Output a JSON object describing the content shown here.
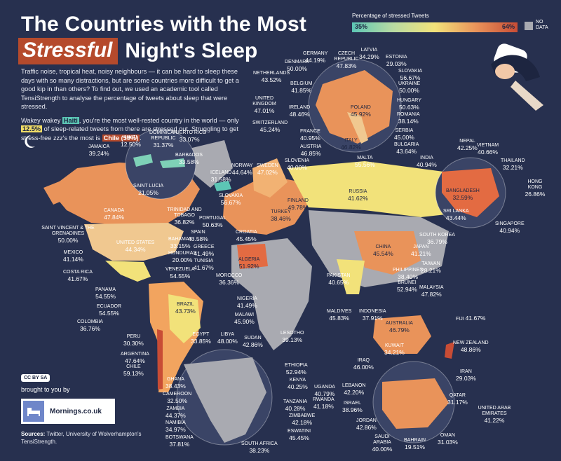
{
  "title": {
    "line1": "The Countries with the Most",
    "highlight": "Stressful",
    "rest": "Night's Sleep"
  },
  "intro": {
    "p1": "Traffic noise, tropical heat, noisy neighbours — it can be hard to sleep these days with so many distractions, but are some countries more difficult to get a good kip in than others? To find out, we used an academic tool called TensiStrength to analyse the percentage of tweets about sleep that were stressed.",
    "p2_a": "Wakey wakey ",
    "p2_haiti": "Haiti",
    "p2_b": ", you're the most well-rested country in the world — only ",
    "p2_pct": "12.5%",
    "p2_c": " of sleep-related tweets from there are stressed out. Struggling to get stress-free zzz's the most is ",
    "p2_chile": "Chile (59%)",
    "p2_d": "."
  },
  "legend": {
    "title": "Percentage of stressed Tweets",
    "min": "35%",
    "max": "64%",
    "nodata": "NO DATA"
  },
  "colors": {
    "bg": "#27304f",
    "low": "#5cc6b5",
    "mid": "#f2e27a",
    "high": "#c84c35",
    "nodata": "#a9aab1",
    "accent": "#b54a2c"
  },
  "labels": [
    {
      "id": "germany",
      "name": "GERMANY",
      "value": "44.19%"
    },
    {
      "id": "czech",
      "name": "CZECH REPUBLIC",
      "value": "47.83%"
    },
    {
      "id": "latvia",
      "name": "LATVIA",
      "value": "34.29%"
    },
    {
      "id": "estonia",
      "name": "ESTONIA",
      "value": "29.03%"
    },
    {
      "id": "denmark",
      "name": "DENMARK",
      "value": "50.00%"
    },
    {
      "id": "netherlands",
      "name": "NETHERLANDS",
      "value": "43.52%"
    },
    {
      "id": "belgium",
      "name": "BELGIUM",
      "value": "41.85%"
    },
    {
      "id": "slovakia-eu",
      "name": "SLOVAKIA",
      "value": "56.67%"
    },
    {
      "id": "ukraine",
      "name": "UKRAINE",
      "value": "50.00%"
    },
    {
      "id": "uk",
      "name": "UNITED KINGDOM",
      "value": "47.01%"
    },
    {
      "id": "ireland",
      "name": "IRELAND",
      "value": "48.46%"
    },
    {
      "id": "poland",
      "name": "POLAND",
      "value": "45.92%"
    },
    {
      "id": "hungary",
      "name": "HUNGARY",
      "value": "50.63%"
    },
    {
      "id": "romania",
      "name": "ROMANIA",
      "value": "38.14%"
    },
    {
      "id": "switzerland",
      "name": "SWITZERLAND",
      "value": "45.24%"
    },
    {
      "id": "france",
      "name": "FRANCE",
      "value": "40.95%"
    },
    {
      "id": "serbia",
      "name": "SERBIA",
      "value": "45.00%"
    },
    {
      "id": "bulgaria",
      "name": "BULGARIA",
      "value": "43.64%"
    },
    {
      "id": "austria",
      "name": "AUSTRIA",
      "value": "46.85%"
    },
    {
      "id": "italy",
      "name": "ITALY",
      "value": "46.82%"
    },
    {
      "id": "slovenia",
      "name": "SLOVENIA",
      "value": "40.00%"
    },
    {
      "id": "malta",
      "name": "MALTA",
      "value": "55.56%"
    },
    {
      "id": "haiti",
      "name": "HAITI",
      "value": "12.50%"
    },
    {
      "id": "dominican",
      "name": "DOMINICAN REPUBLIC",
      "value": "31.37%"
    },
    {
      "id": "puertorico",
      "name": "PUERTO RICO",
      "value": "33.07%"
    },
    {
      "id": "jamaica",
      "name": "JAMAICA",
      "value": "39.24%"
    },
    {
      "id": "barbados",
      "name": "BARBADOS",
      "value": "33.58%"
    },
    {
      "id": "stlucia",
      "name": "SAINT LUCIA",
      "value": "21.05%"
    },
    {
      "id": "trinidad",
      "name": "TRINIDAD AND TOBAGO",
      "value": "36.82%"
    },
    {
      "id": "norway",
      "name": "NORWAY",
      "value": "44.64%"
    },
    {
      "id": "sweden",
      "name": "SWEDEN",
      "value": "47.02%"
    },
    {
      "id": "iceland",
      "name": "ICELAND",
      "value": "31.58%"
    },
    {
      "id": "slovakia",
      "name": "SLOVAKIA",
      "value": "56.67%"
    },
    {
      "id": "finland",
      "name": "FINLAND",
      "value": "49.78%"
    },
    {
      "id": "russia",
      "name": "RUSSIA",
      "value": "41.62%"
    },
    {
      "id": "canada",
      "name": "CANADA",
      "value": "47.84%"
    },
    {
      "id": "stvincent",
      "name": "SAINT VINCENT & THE GRENADINES",
      "value": "50.00%"
    },
    {
      "id": "portugal",
      "name": "PORTUGAL",
      "value": "50.63%"
    },
    {
      "id": "spain",
      "name": "SPAIN",
      "value": "43.58%"
    },
    {
      "id": "croatia",
      "name": "CROATIA",
      "value": "45.45%"
    },
    {
      "id": "turkey",
      "name": "TURKEY",
      "value": "38.46%"
    },
    {
      "id": "usa",
      "name": "UNITED STATES",
      "value": "44.34%"
    },
    {
      "id": "bahamas",
      "name": "BAHAMAS",
      "value": "33.15%"
    },
    {
      "id": "greece",
      "name": "GREECE",
      "value": "41.49%"
    },
    {
      "id": "honduras",
      "name": "HONDURAS",
      "value": "20.00%"
    },
    {
      "id": "tunisia",
      "name": "TUNISIA",
      "value": "41.67%"
    },
    {
      "id": "algeria",
      "name": "ALGERIA",
      "value": "51.92%"
    },
    {
      "id": "mexico",
      "name": "MEXICO",
      "value": "41.14%"
    },
    {
      "id": "venezuela",
      "name": "VENEZUELA",
      "value": "54.55%"
    },
    {
      "id": "morocco",
      "name": "MOROCCO",
      "value": "36.36%"
    },
    {
      "id": "costarica",
      "name": "COSTA RICA",
      "value": "41.67%"
    },
    {
      "id": "panama",
      "name": "PANAMA",
      "value": "54.55%"
    },
    {
      "id": "ecuador",
      "name": "ECUADOR",
      "value": "54.55%"
    },
    {
      "id": "colombia",
      "name": "COLOMBIA",
      "value": "36.76%"
    },
    {
      "id": "brazil",
      "name": "BRAZIL",
      "value": "43.73%"
    },
    {
      "id": "peru",
      "name": "PERU",
      "value": "30.30%"
    },
    {
      "id": "argentina",
      "name": "ARGENTINA",
      "value": "47.64%"
    },
    {
      "id": "chile",
      "name": "CHILE",
      "value": "59.13%"
    },
    {
      "id": "nigeria",
      "name": "NIGERIA",
      "value": "41.49%"
    },
    {
      "id": "malawi",
      "name": "MALAWI",
      "value": "45.90%"
    },
    {
      "id": "egypt",
      "name": "EGYPT",
      "value": "33.85%"
    },
    {
      "id": "libya",
      "name": "LIBYA",
      "value": "48.00%"
    },
    {
      "id": "sudan",
      "name": "SUDAN",
      "value": "42.86%"
    },
    {
      "id": "lesotho",
      "name": "LESOTHO",
      "value": "39.13%"
    },
    {
      "id": "ethiopia",
      "name": "ETHIOPIA",
      "value": "52.94%"
    },
    {
      "id": "kenya",
      "name": "KENYA",
      "value": "40.25%"
    },
    {
      "id": "uganda",
      "name": "UGANDA",
      "value": "40.79%"
    },
    {
      "id": "rwanda",
      "name": "RWANDA",
      "value": "41.18%"
    },
    {
      "id": "ghana",
      "name": "GHANA",
      "value": "38.43%"
    },
    {
      "id": "cameroon",
      "name": "CAMEROON",
      "value": "32.50%"
    },
    {
      "id": "tanzania",
      "name": "TANZANIA",
      "value": "40.28%"
    },
    {
      "id": "zimbabwe",
      "name": "ZIMBABWE",
      "value": "42.18%"
    },
    {
      "id": "zambia",
      "name": "ZAMBIA",
      "value": "44.37%"
    },
    {
      "id": "namibia",
      "name": "NAMIBIA",
      "value": "34.97%"
    },
    {
      "id": "eswatini",
      "name": "ESWATINI",
      "value": "45.45%"
    },
    {
      "id": "botswana",
      "name": "BOTSWANA",
      "value": "37.81%"
    },
    {
      "id": "southafrica",
      "name": "SOUTH AFRICA",
      "value": "38.23%"
    },
    {
      "id": "nepal",
      "name": "NEPAL",
      "value": "42.25%"
    },
    {
      "id": "vietnam",
      "name": "VIETNAM",
      "value": "40.66%"
    },
    {
      "id": "india",
      "name": "INDIA",
      "value": "40.94%"
    },
    {
      "id": "thailand",
      "name": "THAILAND",
      "value": "32.21%"
    },
    {
      "id": "hongkong",
      "name": "HONG KONG",
      "value": "26.86%"
    },
    {
      "id": "bangladesh",
      "name": "BANGLADESH",
      "value": "32.59%"
    },
    {
      "id": "srilanka",
      "name": "SRI LANKA",
      "value": "43.44%"
    },
    {
      "id": "singapore",
      "name": "SINGAPORE",
      "value": "40.94%"
    },
    {
      "id": "southkorea",
      "name": "SOUTH KOREA",
      "value": "36.79%"
    },
    {
      "id": "japan",
      "name": "JAPAN",
      "value": "41.21%"
    },
    {
      "id": "china",
      "name": "CHINA",
      "value": "45.54%"
    },
    {
      "id": "taiwan",
      "name": "TAIWAN",
      "value": "28.21%"
    },
    {
      "id": "pakistan",
      "name": "PAKISTAN",
      "value": "40.65%"
    },
    {
      "id": "philippines",
      "name": "PHILIPPINES",
      "value": "38.40%"
    },
    {
      "id": "brunei",
      "name": "BRUNEI",
      "value": "52.94%"
    },
    {
      "id": "malaysia",
      "name": "MALAYSIA",
      "value": "47.82%"
    },
    {
      "id": "maldives",
      "name": "MALDIVES",
      "value": "45.83%"
    },
    {
      "id": "indonesia",
      "name": "INDONESIA",
      "value": "37.91%"
    },
    {
      "id": "fiji",
      "name": "FIJI",
      "value": "41.67%"
    },
    {
      "id": "australia",
      "name": "AUSTRALIA",
      "value": "46.79%"
    },
    {
      "id": "newzealand",
      "name": "NEW ZEALAND",
      "value": "48.86%"
    },
    {
      "id": "kuwait",
      "name": "KUWAIT",
      "value": "34.21%"
    },
    {
      "id": "iraq",
      "name": "IRAQ",
      "value": "46.00%"
    },
    {
      "id": "iran",
      "name": "IRAN",
      "value": "29.03%"
    },
    {
      "id": "lebanon",
      "name": "LEBANON",
      "value": "42.20%"
    },
    {
      "id": "qatar",
      "name": "QATAR",
      "value": "31.17%"
    },
    {
      "id": "israel",
      "name": "ISRAEL",
      "value": "38.96%"
    },
    {
      "id": "uae",
      "name": "UNITED ARAB EMIRATES",
      "value": "41.22%"
    },
    {
      "id": "jordan",
      "name": "JORDAN",
      "value": "42.86%"
    },
    {
      "id": "saudi",
      "name": "SAUDI ARABIA",
      "value": "40.00%"
    },
    {
      "id": "bahrain",
      "name": "BAHRAIN",
      "value": "19.51%"
    },
    {
      "id": "oman",
      "name": "OMAN",
      "value": "31.03%"
    }
  ],
  "footer": {
    "license": "CC BY SA",
    "brought": "brought to you by",
    "brand": "Mornings.co.uk",
    "sources_label": "Sources:",
    "sources_text": " Twitter, University of Wolverhampton's TensiStrength."
  }
}
